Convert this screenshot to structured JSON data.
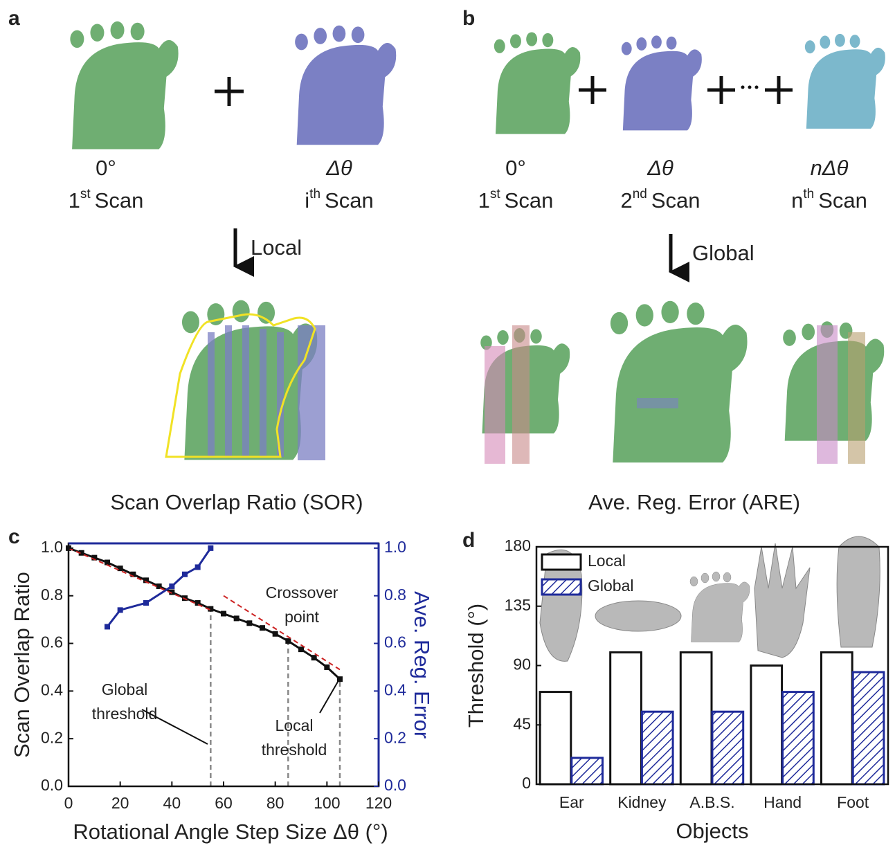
{
  "panel_a": {
    "label": "a",
    "scans": [
      {
        "angle": "0°",
        "ordinal": "1",
        "suffix": "st",
        "name": "Scan"
      },
      {
        "angle": "Δθ",
        "ordinal": "i",
        "suffix": "th",
        "name": "Scan"
      }
    ],
    "method": "Local",
    "caption": "Scan Overlap Ratio (SOR)"
  },
  "panel_b": {
    "label": "b",
    "scans": [
      {
        "angle": "0°",
        "ordinal": "1",
        "suffix": "st",
        "name": "Scan"
      },
      {
        "angle": "Δθ",
        "ordinal": "2",
        "suffix": "nd",
        "name": "Scan"
      },
      {
        "angle": "nΔθ",
        "ordinal": "n",
        "suffix": "th",
        "name": "Scan"
      }
    ],
    "method": "Global",
    "caption": "Ave. Reg. Error (ARE)"
  },
  "chart_data": [
    {
      "type": "line",
      "panel_label": "c",
      "xlabel": "Rotational Angle Step Size Δθ (°)",
      "ylabel": "Scan Overlap Ratio",
      "y2label": "Ave. Reg. Error",
      "xlim": [
        0,
        120
      ],
      "xticks": [
        0,
        20,
        40,
        60,
        80,
        100,
        120
      ],
      "ylim": [
        0,
        1.02
      ],
      "yticks": [
        {
          "value": 0,
          "label": "0.0"
        },
        0.2,
        0.4,
        0.6,
        0.8,
        {
          "value": 1,
          "label": "1.0"
        }
      ],
      "y2lim": [
        0,
        1.02
      ],
      "y2ticks": [
        {
          "value": 0,
          "label": "0.0"
        },
        0.2,
        0.4,
        0.6,
        0.8,
        {
          "value": 1,
          "label": "1.0"
        }
      ],
      "y2color": "#1e2a9a",
      "series": [
        {
          "color": "#111111",
          "marker": "square",
          "x": [
            0,
            5,
            10,
            15,
            20,
            25,
            30,
            35,
            40,
            45,
            50,
            55,
            60,
            65,
            70,
            75,
            80,
            85,
            90,
            95,
            100,
            105
          ],
          "values": [
            1.0,
            0.98,
            0.96,
            0.94,
            0.915,
            0.89,
            0.865,
            0.84,
            0.815,
            0.79,
            0.77,
            0.745,
            0.725,
            0.705,
            0.685,
            0.665,
            0.64,
            0.61,
            0.575,
            0.54,
            0.5,
            0.45
          ]
        },
        {
          "color": "#1e2a9a",
          "marker": "square",
          "axis": "y2",
          "x": [
            15,
            20,
            30,
            40,
            45,
            50,
            55
          ],
          "values": [
            0.67,
            0.74,
            0.77,
            0.84,
            0.89,
            0.92,
            1.0
          ]
        },
        {
          "color": "#cc2222",
          "dash": true,
          "x": [
            0,
            55
          ],
          "values": [
            1.0,
            0.74
          ]
        },
        {
          "color": "#cc2222",
          "dash": true,
          "x": [
            60,
            105
          ],
          "values": [
            0.8,
            0.49
          ]
        }
      ],
      "vlines": [
        55,
        85,
        105
      ],
      "annotations": [
        [
          "Crossover",
          "point"
        ],
        [
          "Global",
          "threshold"
        ],
        [
          "Local",
          "threshold"
        ]
      ]
    },
    {
      "type": "bar",
      "panel_label": "d",
      "xlabel": "Objects",
      "ylabel": "Threshold (°)",
      "categories": [
        "Ear",
        "Kidney",
        "A.B.S.",
        "Hand",
        "Foot"
      ],
      "ylim": [
        0,
        180
      ],
      "yticks": [
        0,
        45,
        90,
        135,
        180
      ],
      "legend": "top-left",
      "series": [
        {
          "name": "Local",
          "color": "#111111",
          "fill": "none",
          "values": [
            70,
            100,
            100,
            90,
            100
          ]
        },
        {
          "name": "Global",
          "color": "#1e2a9a",
          "fill": "hatch",
          "values": [
            20,
            55,
            55,
            70,
            85
          ]
        }
      ]
    }
  ]
}
